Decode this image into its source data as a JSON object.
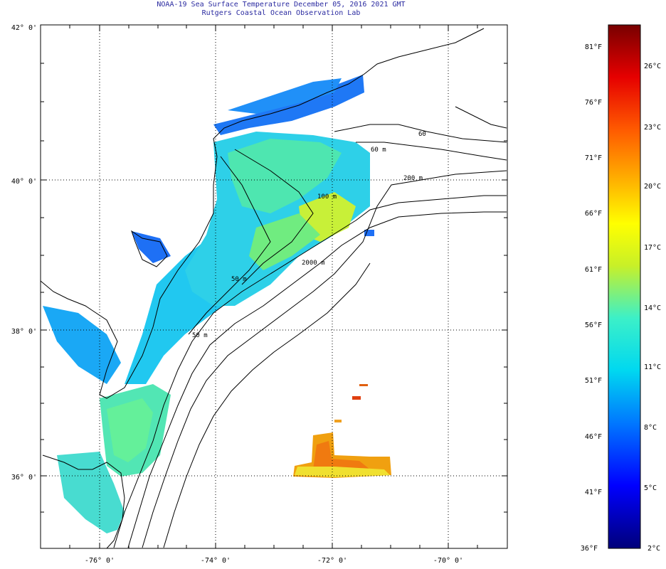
{
  "title": {
    "line1": "NOAA-19 Sea Surface Temperature December 05, 2016 2021 GMT",
    "line2": "Rutgers Coastal Ocean Observation Lab"
  },
  "map": {
    "lat_labels": [
      "42° 0'",
      "40° 0'",
      "38° 0'",
      "36° 0'"
    ],
    "lon_labels": [
      "-76° 0'",
      "-74° 0'",
      "-72° 0'",
      "-70° 0'"
    ],
    "isobath_labels": [
      "60",
      "60 m",
      "200 m",
      "100 m",
      "2000 m",
      "50 m",
      "50 m"
    ],
    "land_color": "#ffffff",
    "coast_color": "#000000"
  },
  "colorbar": {
    "fahrenheit": [
      "81°F",
      "76°F",
      "71°F",
      "66°F",
      "61°F",
      "56°F",
      "51°F",
      "46°F",
      "41°F",
      "36°F"
    ],
    "celsius": [
      "26°C",
      "23°C",
      "20°C",
      "17°C",
      "14°C",
      "11°C",
      "8°C",
      "5°C",
      "2°C"
    ],
    "colors": [
      "#00007a",
      "#0000ff",
      "#0078ff",
      "#00d8f0",
      "#3cf0c8",
      "#c8f028",
      "#ffff00",
      "#ffb400",
      "#ff5a00",
      "#e60000",
      "#780000"
    ]
  }
}
